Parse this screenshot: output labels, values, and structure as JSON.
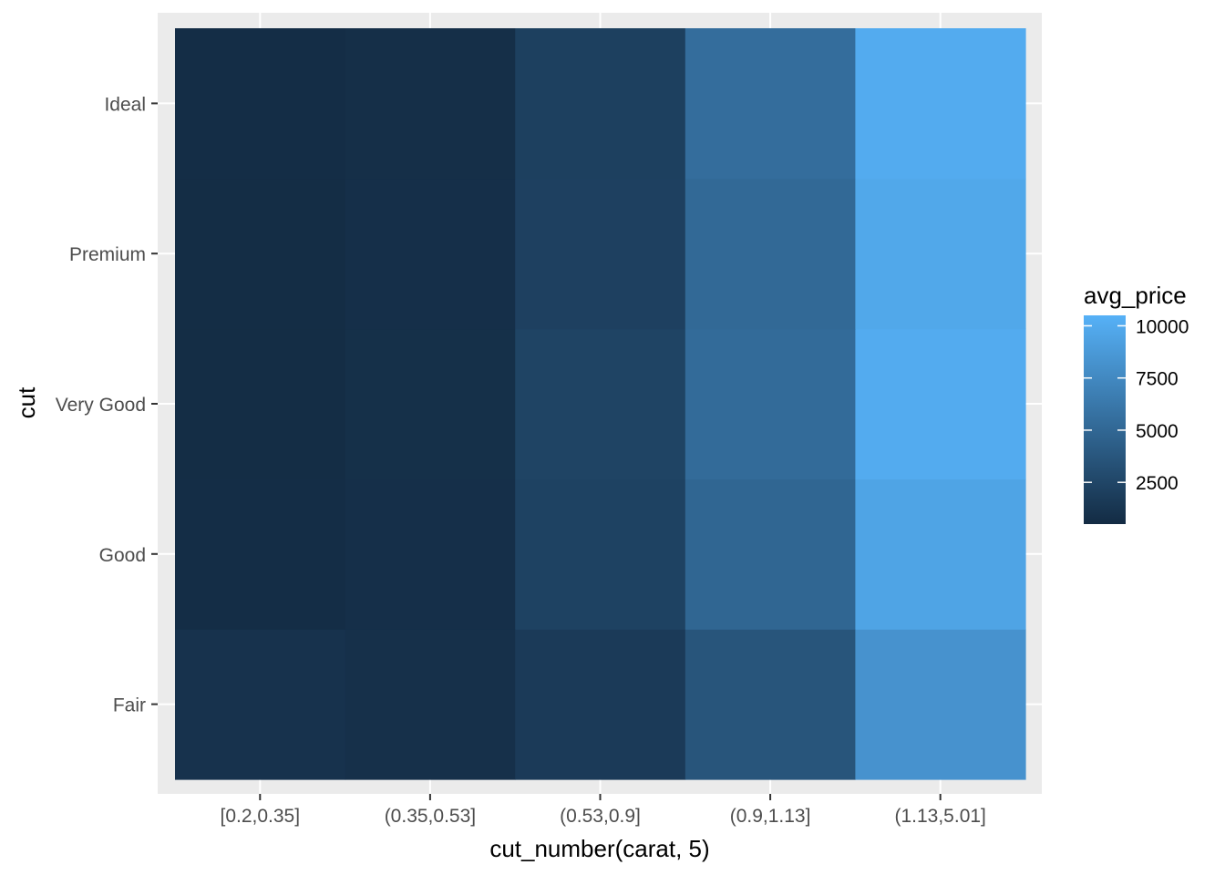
{
  "chart_data": {
    "type": "heatmap",
    "xlabel": "cut_number(carat, 5)",
    "ylabel": "cut",
    "x_categories": [
      "[0.2,0.35]",
      "(0.35,0.53]",
      "(0.53,0.9]",
      "(0.9,1.13]",
      "(1.13,5.01]"
    ],
    "y_categories": [
      "Fair",
      "Good",
      "Very Good",
      "Premium",
      "Ideal"
    ],
    "values": [
      [
        1050,
        900,
        1650,
        3600,
        8200
      ],
      [
        640,
        820,
        2200,
        4900,
        9500
      ],
      [
        630,
        840,
        2350,
        5300,
        10050
      ],
      [
        630,
        830,
        2100,
        5100,
        9800
      ],
      [
        640,
        800,
        2050,
        5450,
        10050
      ]
    ],
    "legend": {
      "title": "avg_price",
      "ticks": [
        2500,
        5000,
        7500,
        10000
      ],
      "tick_labels": [
        "2500",
        "5000",
        "7500",
        "10000"
      ],
      "range": [
        500,
        10500
      ],
      "position": "right"
    },
    "colors": {
      "low": "#132B43",
      "high": "#56B1F7",
      "panel_background": "#EBEBEB",
      "grid": "#FFFFFF",
      "tick_text": "#4D4D4D",
      "tick_mark": "#333333"
    },
    "grid": true
  }
}
